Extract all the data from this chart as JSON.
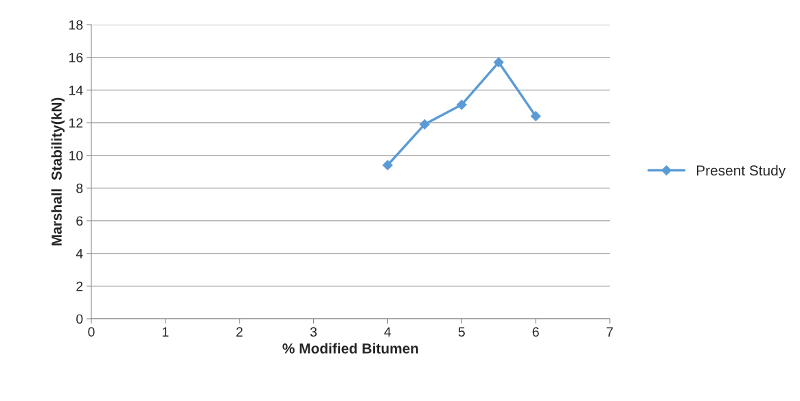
{
  "chart_data": {
    "type": "line",
    "xlabel": "% Modified Bitumen",
    "ylabel": "Marshall  Stability(kN)",
    "x": [
      4,
      4.5,
      5,
      5.5,
      6
    ],
    "series": [
      {
        "name": "Present Study",
        "color": "#5b9bd5",
        "values": [
          9.4,
          11.9,
          13.1,
          15.7,
          12.4
        ]
      }
    ],
    "xlim": [
      0,
      7
    ],
    "xticks": [
      0,
      1,
      2,
      3,
      4,
      5,
      6,
      7
    ],
    "ylim": [
      0,
      18
    ],
    "yticks": [
      0,
      2,
      4,
      6,
      8,
      10,
      12,
      14,
      16,
      18
    ],
    "grid": "y",
    "legend": "right",
    "marker": "diamond",
    "line_style": "solid"
  }
}
